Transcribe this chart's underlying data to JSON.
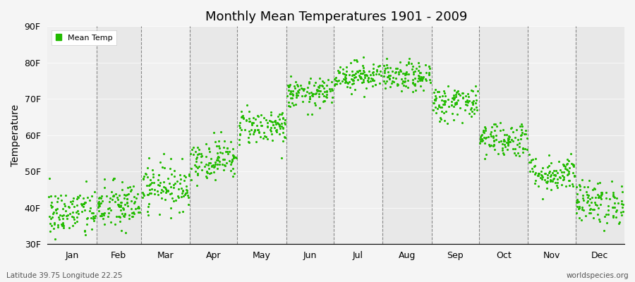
{
  "title": "Monthly Mean Temperatures 1901 - 2009",
  "ylabel": "Temperature",
  "month_names": [
    "Jan",
    "Feb",
    "Mar",
    "Apr",
    "May",
    "Jun",
    "Jul",
    "Aug",
    "Sep",
    "Oct",
    "Nov",
    "Dec"
  ],
  "month_days": [
    31,
    28,
    31,
    30,
    31,
    30,
    31,
    31,
    30,
    31,
    30,
    31
  ],
  "subtitle_left": "Latitude 39.75 Longitude 22.25",
  "subtitle_right": "worldspecies.org",
  "ylim": [
    30,
    90
  ],
  "yticks": [
    30,
    40,
    50,
    60,
    70,
    80,
    90
  ],
  "ytick_labels": [
    "30F",
    "40F",
    "50F",
    "60F",
    "70F",
    "80F",
    "90F"
  ],
  "legend_label": "Mean Temp",
  "marker_color": "#22bb00",
  "background_color": "#f5f5f5",
  "plot_bg_odd": "#f0f0f0",
  "plot_bg_even": "#e8e8e8",
  "n_years": 109,
  "monthly_means_F": [
    38.5,
    40.5,
    46.0,
    53.5,
    62.5,
    71.5,
    76.5,
    76.0,
    69.0,
    59.0,
    49.5,
    41.5
  ],
  "monthly_stds_F": [
    3.5,
    3.5,
    3.2,
    2.8,
    2.5,
    2.0,
    2.0,
    2.0,
    2.5,
    2.5,
    2.5,
    3.0
  ],
  "seed": 42
}
